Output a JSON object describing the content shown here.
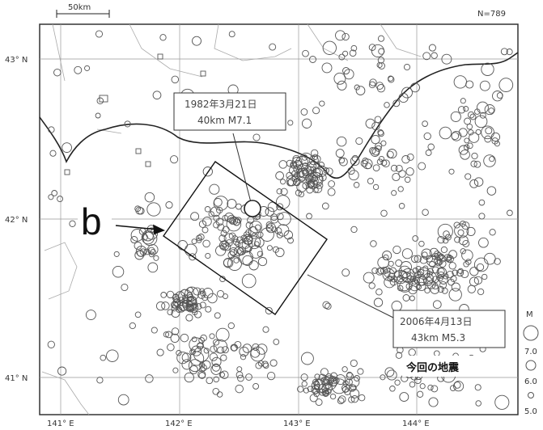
{
  "map": {
    "scale_label": "50km",
    "count_label": "N=789",
    "lat_labels": [
      "43° N",
      "42° N",
      "41° N"
    ],
    "lon_labels": [
      "141° E",
      "142° E",
      "143° E",
      "144° E"
    ],
    "annotation_1982": {
      "line1": "1982年3月21日",
      "line2": "40km M7.1"
    },
    "annotation_2006": {
      "line1": "2006年4月13日",
      "line2": "43km M5.3"
    },
    "b_label": "b",
    "current_quake_label": "今回の地震",
    "legend": {
      "title": "M",
      "labels": [
        "7.0",
        "6.0",
        "5.0"
      ]
    }
  }
}
